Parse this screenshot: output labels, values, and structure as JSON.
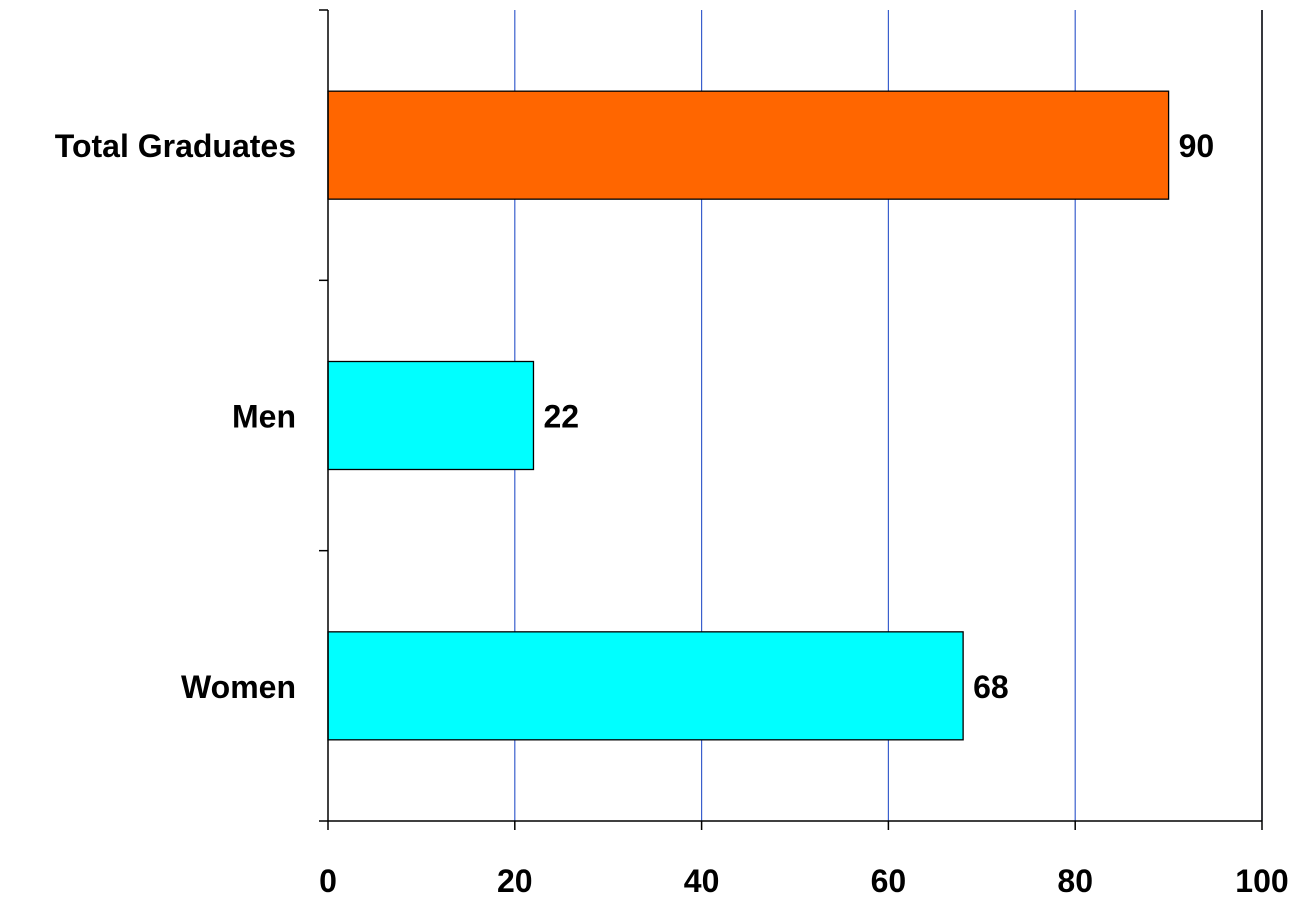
{
  "chart_data": {
    "type": "bar",
    "orientation": "horizontal",
    "categories": [
      "Total Graduates",
      "Men",
      "Women"
    ],
    "values": [
      90,
      22,
      68
    ],
    "data_labels": [
      "90",
      "22",
      "68"
    ],
    "title": "",
    "xlabel": "",
    "ylabel": "",
    "xlim": [
      0,
      100
    ],
    "x_ticks": [
      0,
      20,
      40,
      60,
      80,
      100
    ],
    "x_tick_labels": [
      "0",
      "20",
      "40",
      "60",
      "80",
      "100"
    ],
    "grid": "vertical",
    "legend": "none",
    "colors": {
      "Total Graduates": "#FF6600",
      "Men": "#00FFFF",
      "Women": "#00FFFF",
      "gridline": "#3A5FCD",
      "axis": "#000000",
      "bar_outline": "#000000"
    }
  }
}
